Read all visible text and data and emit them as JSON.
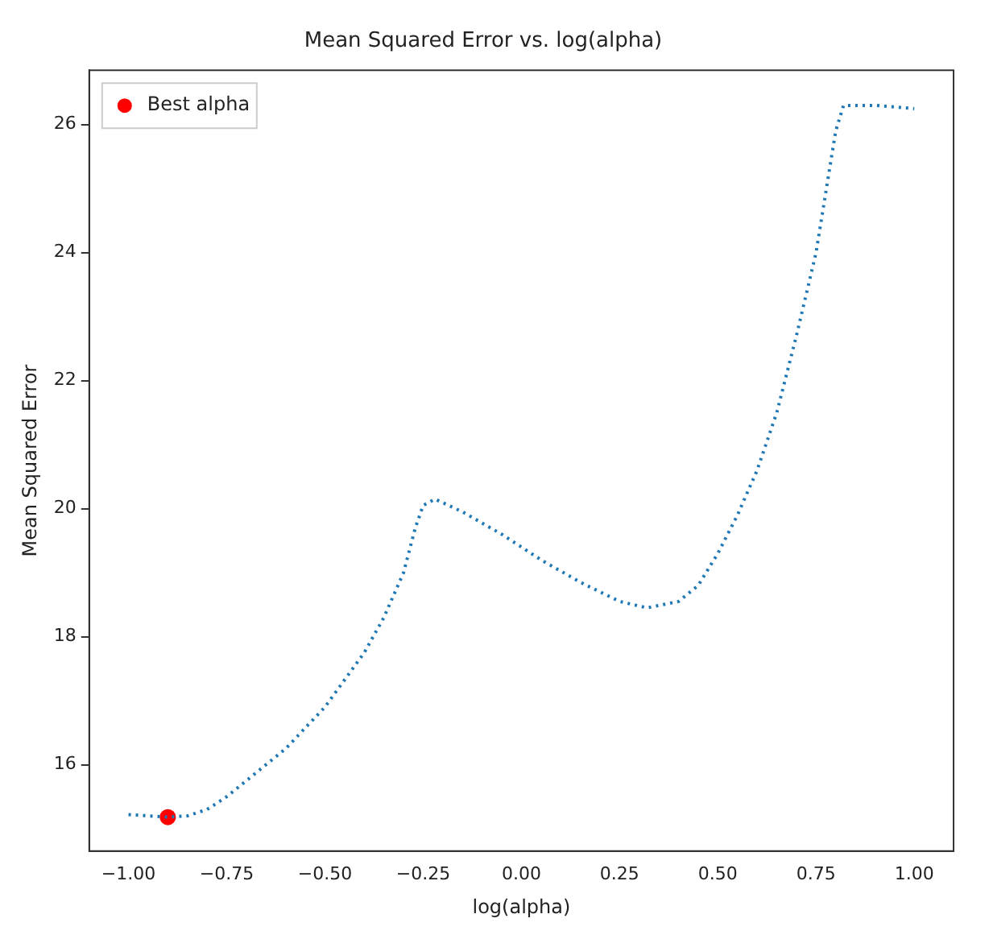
{
  "chart_data": {
    "type": "line",
    "title": "Mean Squared Error vs. log(alpha)",
    "xlabel": "log(alpha)",
    "ylabel": "Mean Squared Error",
    "xlim": [
      -1.1,
      1.1
    ],
    "xticks": [
      {
        "value": -1,
        "label": "−1.00"
      },
      {
        "value": -0.75,
        "label": "−0.75"
      },
      {
        "value": -0.5,
        "label": "−0.50"
      },
      {
        "value": -0.25,
        "label": "−0.25"
      },
      {
        "value": 0,
        "label": "0.00"
      },
      {
        "value": 0.25,
        "label": "0.25"
      },
      {
        "value": 0.5,
        "label": "0.50"
      },
      {
        "value": 0.75,
        "label": "0.75"
      },
      {
        "value": 1,
        "label": "1.00"
      }
    ],
    "ylim": [
      14.65,
      26.85
    ],
    "yticks": [
      16,
      18,
      20,
      22,
      24,
      26
    ],
    "grid": false,
    "legend": "top left",
    "series": [
      {
        "color": "#1f77b4",
        "line_style": "dotted",
        "marker": "none",
        "x": [
          -1,
          -0.9,
          -0.85,
          -0.8,
          -0.75,
          -0.7,
          -0.6,
          -0.5,
          -0.4,
          -0.35,
          -0.3,
          -0.27,
          -0.25,
          -0.22,
          -0.15,
          -0.05,
          0.05,
          0.15,
          0.25,
          0.32,
          0.4,
          0.45,
          0.5,
          0.55,
          0.6,
          0.65,
          0.7,
          0.75,
          0.8,
          0.82,
          0.9,
          1
        ],
        "values": [
          15.22,
          15.18,
          15.2,
          15.3,
          15.5,
          15.75,
          16.25,
          16.9,
          17.75,
          18.3,
          19.0,
          19.7,
          20.05,
          20.15,
          19.95,
          19.6,
          19.2,
          18.85,
          18.55,
          18.45,
          18.55,
          18.8,
          19.3,
          19.9,
          20.6,
          21.5,
          22.7,
          24.0,
          25.9,
          26.3,
          26.3,
          26.25
        ]
      },
      {
        "type": "scatter",
        "name": "Best alpha",
        "color": "#ff0000",
        "marker": "circle",
        "x": [
          -0.9
        ],
        "values": [
          15.18
        ]
      }
    ]
  }
}
